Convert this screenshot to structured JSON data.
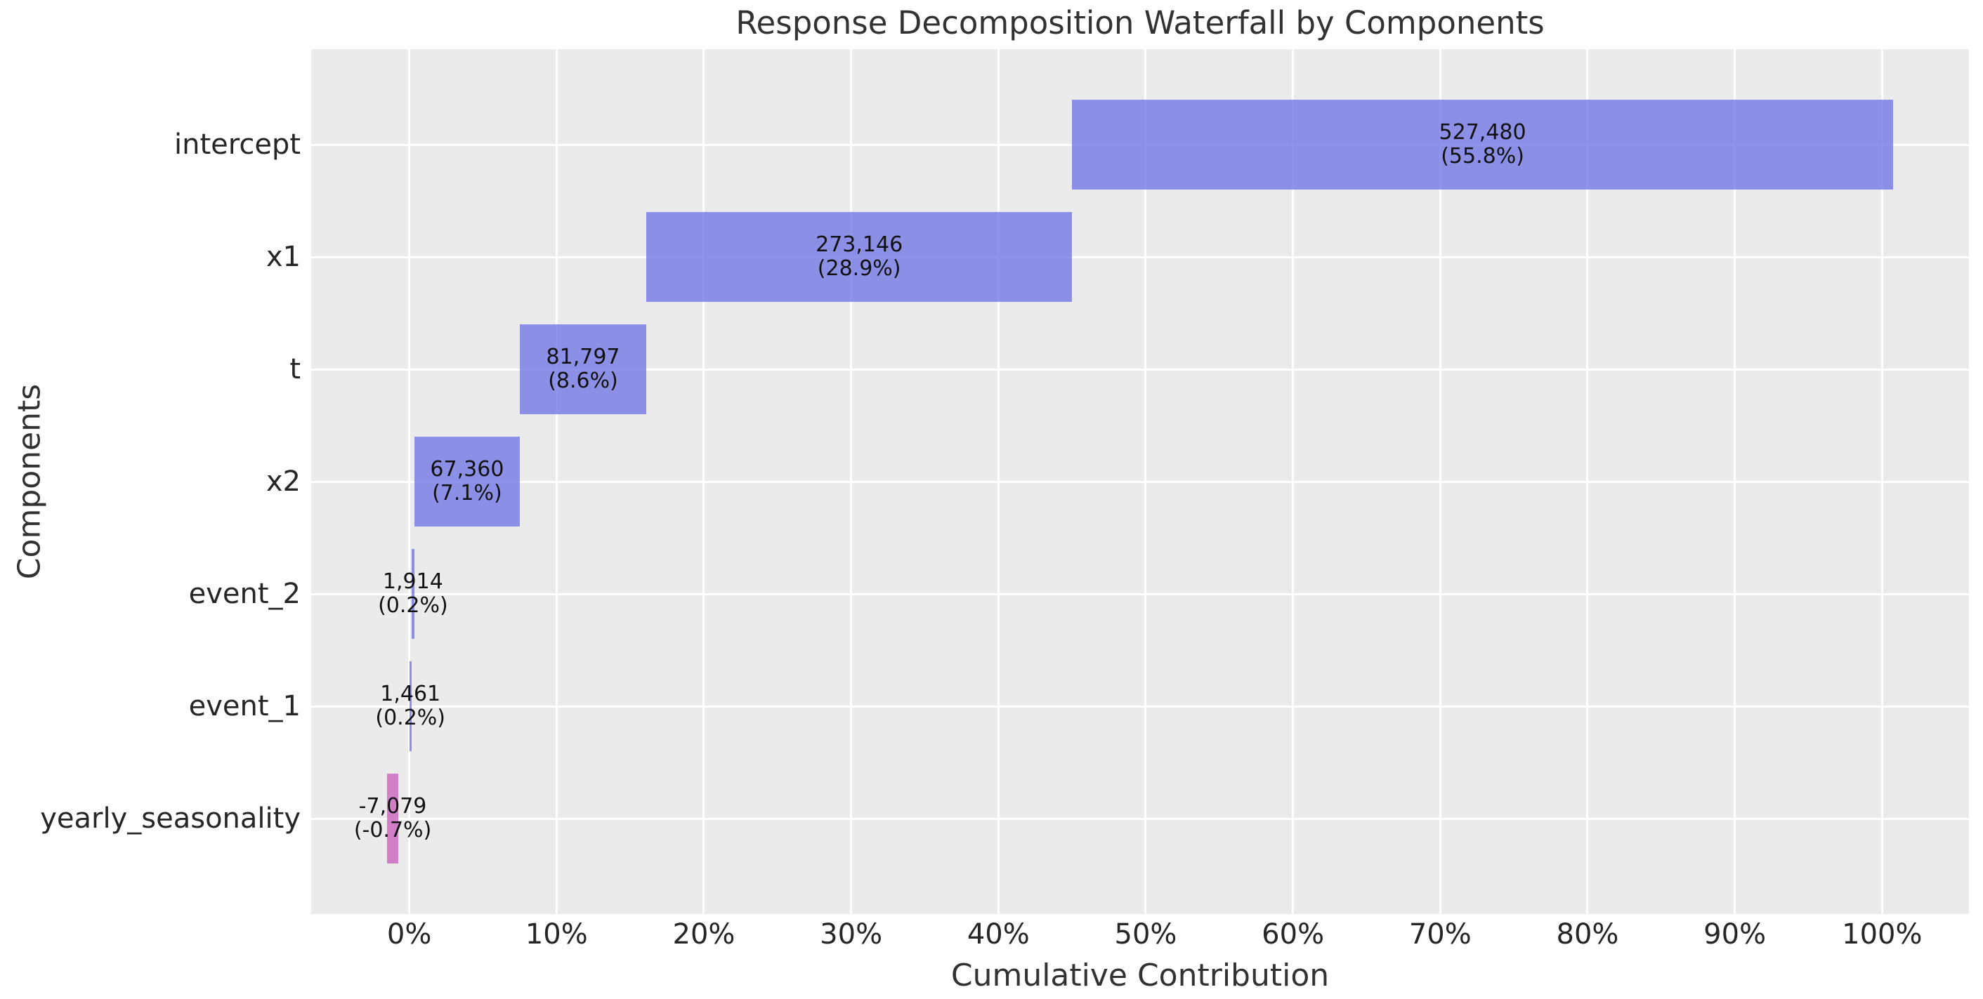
{
  "title": "Response Decomposition Waterfall by Components",
  "chart_data": {
    "type": "bar",
    "subtype": "horizontal-waterfall",
    "title": "Response Decomposition Waterfall by Components",
    "xlabel": "Cumulative Contribution",
    "ylabel": "Components",
    "categories": [
      "intercept",
      "x1",
      "t",
      "x2",
      "event_2",
      "event_1",
      "yearly_seasonality"
    ],
    "values": [
      527480,
      273146,
      81797,
      67360,
      1914,
      1461,
      -7079
    ],
    "percents": [
      55.8,
      28.9,
      8.6,
      7.1,
      0.2,
      0.2,
      -0.7
    ],
    "xlim": [
      -6.66,
      105.9
    ],
    "x_tick_values": [
      0,
      10,
      20,
      30,
      40,
      50,
      60,
      70,
      80,
      90,
      100
    ],
    "x_tick_labels": [
      "0%",
      "10%",
      "20%",
      "30%",
      "40%",
      "50%",
      "60%",
      "70%",
      "80%",
      "90%",
      "100%"
    ],
    "grid": true,
    "legend": "none",
    "colors": {
      "positive_bar": "rgba(116,120,229,0.8)",
      "negative_bar": "rgba(201,99,189,0.8)",
      "plot_background": "#ebebeb",
      "gridline": "#ffffff",
      "title_text": "#323232",
      "tick_text": "#262626",
      "bar_label_text": "#111111"
    },
    "bars": [
      {
        "name": "intercept",
        "value_label": "527,480",
        "pct_label": "(55.8%)",
        "start": 45.0,
        "end": 100.75,
        "sign": "positive"
      },
      {
        "name": "x1",
        "value_label": "273,146",
        "pct_label": "(28.9%)",
        "start": 16.1,
        "end": 45.0,
        "sign": "positive"
      },
      {
        "name": "t",
        "value_label": "81,797",
        "pct_label": "(8.6%)",
        "start": 7.5,
        "end": 16.1,
        "sign": "positive"
      },
      {
        "name": "x2",
        "value_label": "67,360",
        "pct_label": "(7.1%)",
        "start": 0.35,
        "end": 7.5,
        "sign": "positive"
      },
      {
        "name": "event_2",
        "value_label": "1,914",
        "pct_label": "(0.2%)",
        "start": 0.15,
        "end": 0.35,
        "sign": "positive"
      },
      {
        "name": "event_1",
        "value_label": "1,461",
        "pct_label": "(0.2%)",
        "start": 0.0,
        "end": 0.15,
        "sign": "positive"
      },
      {
        "name": "yearly_seasonality",
        "value_label": "-7,079",
        "pct_label": "(-0.7%)",
        "start": -1.5,
        "end": -0.75,
        "sign": "negative"
      }
    ]
  }
}
